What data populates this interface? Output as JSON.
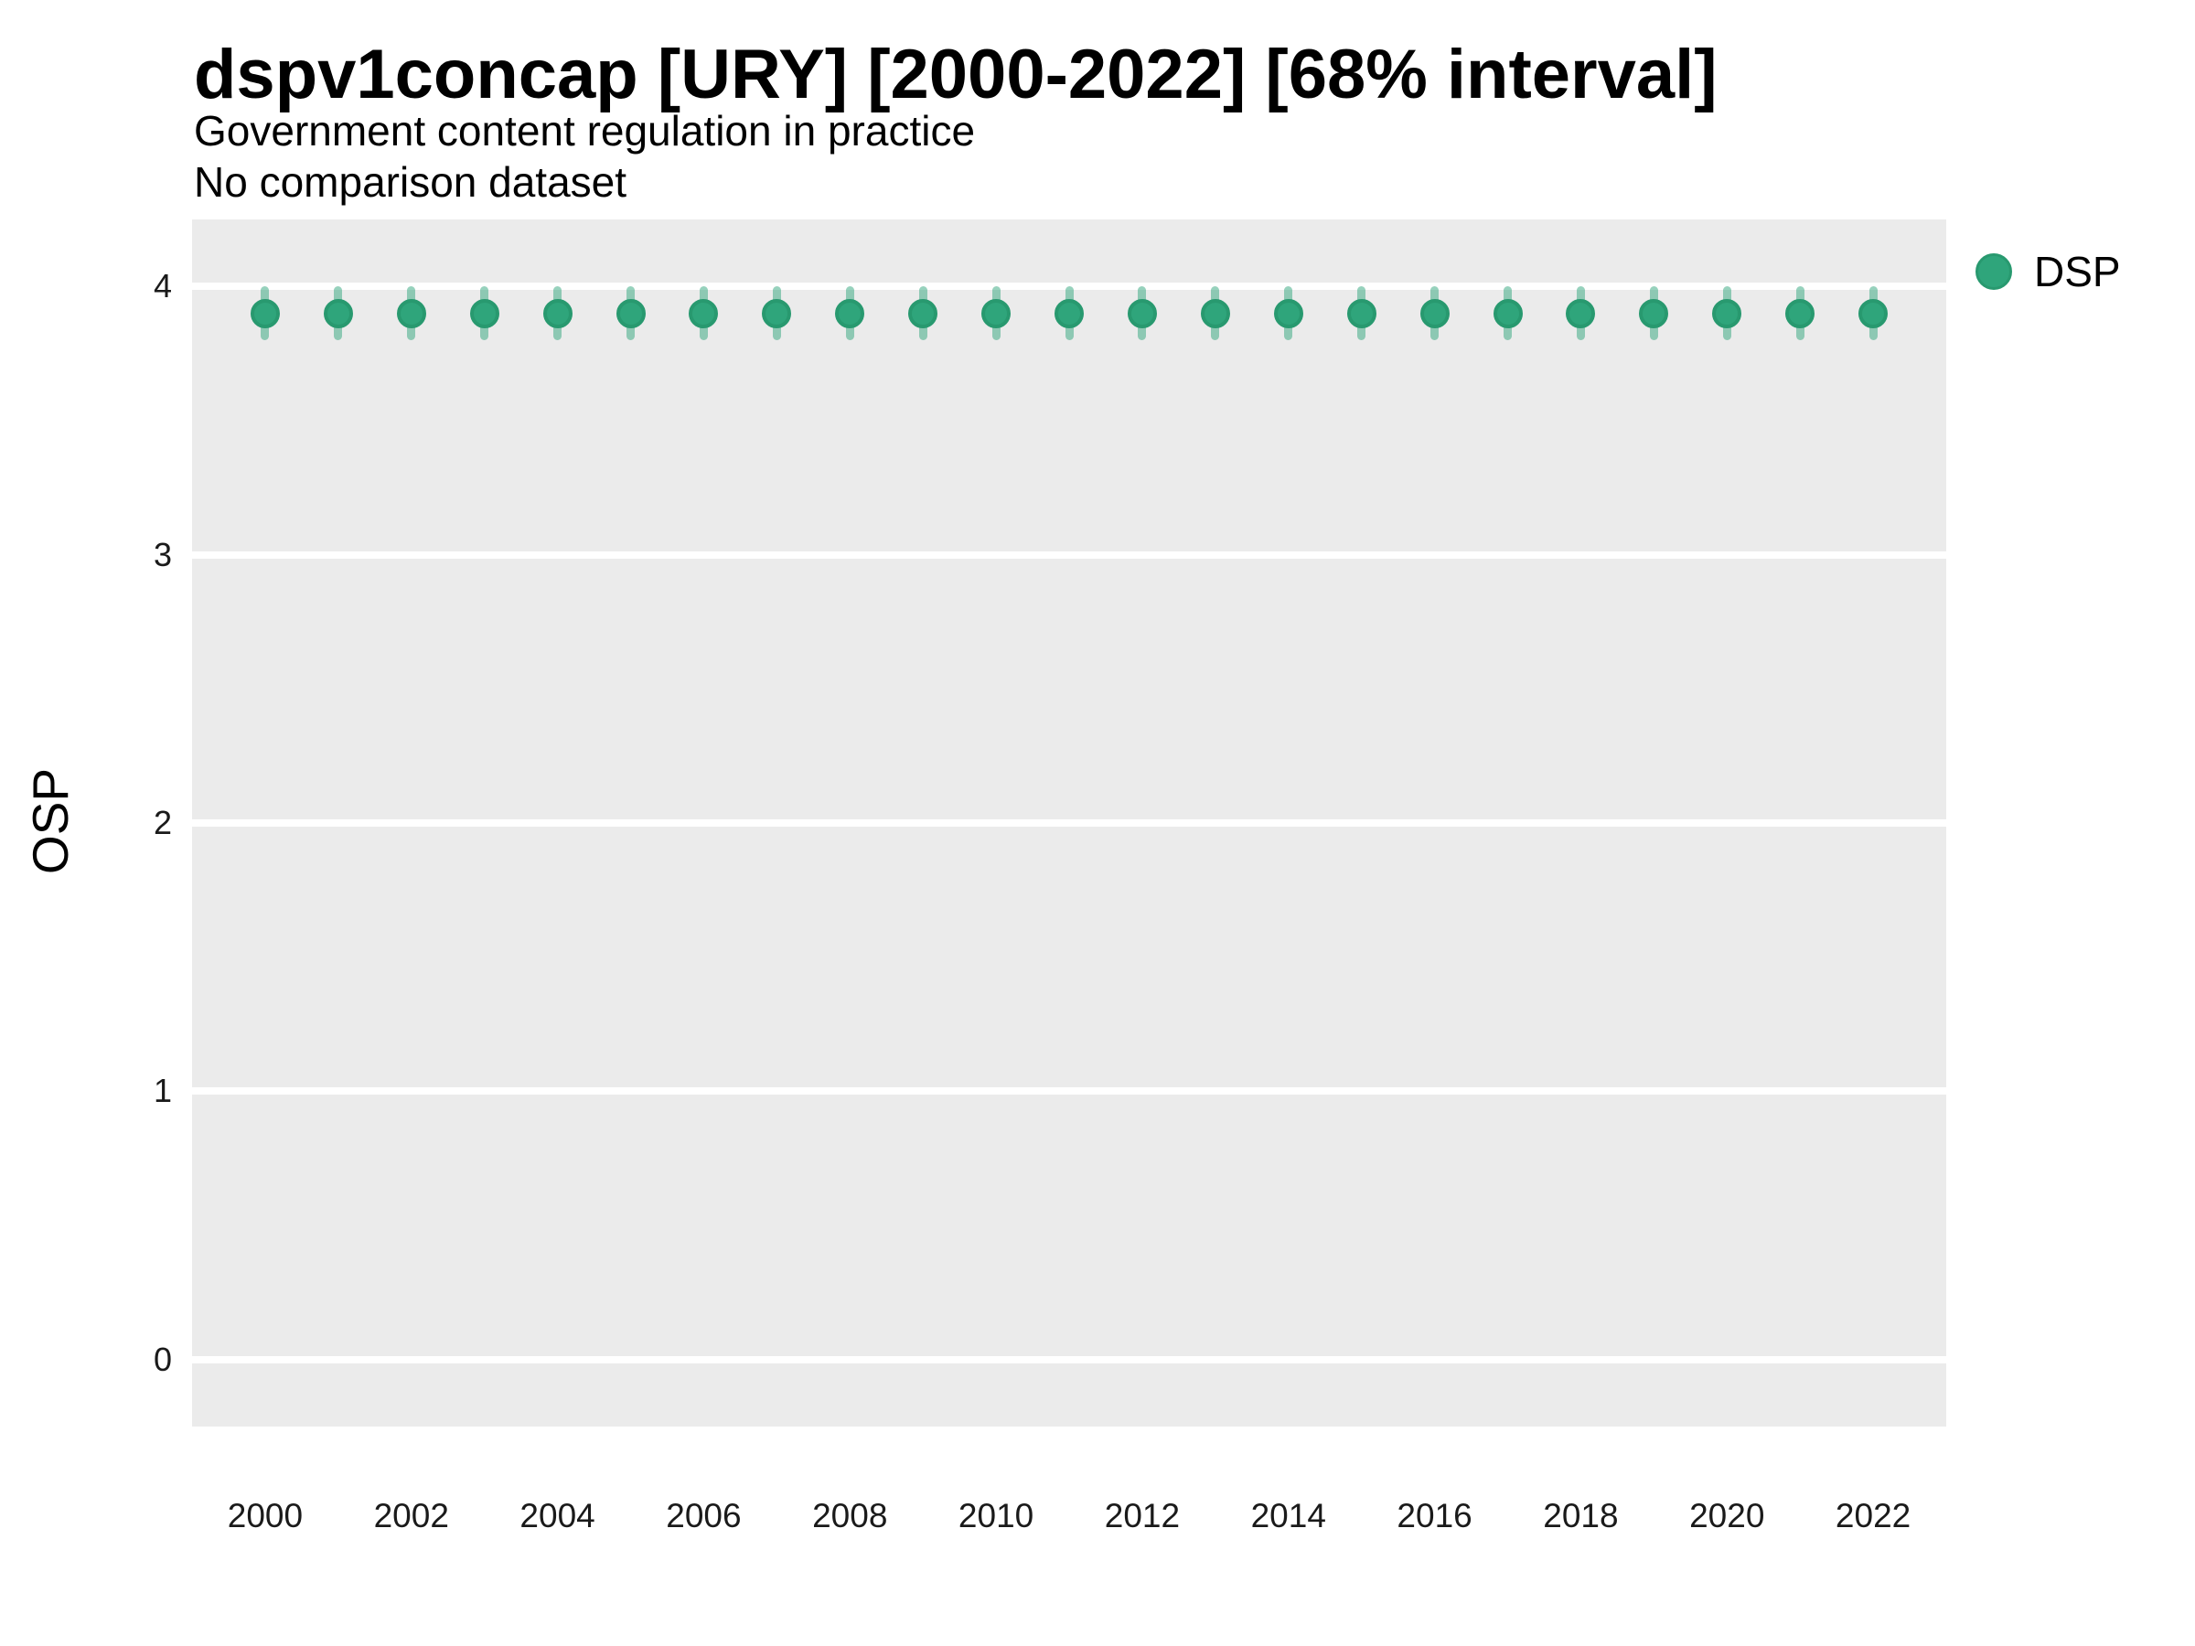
{
  "header": {
    "title": "dspv1concap [URY] [2000-2022] [68% interval]",
    "subtitle": "Government content regulation in practice",
    "note": "No comparison dataset"
  },
  "legend": {
    "label": "DSP"
  },
  "colors": {
    "panel_bg": "#EBEBEB",
    "gridline": "#FFFFFF",
    "point_fill": "#2FA57B",
    "point_stroke": "#28996F",
    "interval_bar": "rgba(47, 165, 123, 0.5)",
    "text": "#000000",
    "tick_text": "#1A1A1A"
  },
  "chart_data": {
    "type": "scatter",
    "title": "dspv1concap [URY] [2000-2022] [68% interval]",
    "subtitle": "Government content regulation in practice",
    "annotation": "No comparison dataset",
    "xlabel": "",
    "ylabel": "OSP",
    "interval_label": "68% interval",
    "country": "URY",
    "x": [
      2000,
      2001,
      2002,
      2003,
      2004,
      2005,
      2006,
      2007,
      2008,
      2009,
      2010,
      2011,
      2012,
      2013,
      2014,
      2015,
      2016,
      2017,
      2018,
      2019,
      2020,
      2021,
      2022
    ],
    "series": [
      {
        "name": "DSP",
        "values": [
          3.9,
          3.9,
          3.9,
          3.9,
          3.9,
          3.9,
          3.9,
          3.9,
          3.9,
          3.9,
          3.9,
          3.9,
          3.9,
          3.9,
          3.9,
          3.9,
          3.9,
          3.9,
          3.9,
          3.9,
          3.9,
          3.9,
          3.9
        ],
        "lower": [
          3.8,
          3.8,
          3.8,
          3.8,
          3.8,
          3.8,
          3.8,
          3.8,
          3.8,
          3.8,
          3.8,
          3.8,
          3.8,
          3.8,
          3.8,
          3.8,
          3.8,
          3.8,
          3.8,
          3.8,
          3.8,
          3.8,
          3.8
        ],
        "upper": [
          4.0,
          4.0,
          4.0,
          4.0,
          4.0,
          4.0,
          4.0,
          4.0,
          4.0,
          4.0,
          4.0,
          4.0,
          4.0,
          4.0,
          4.0,
          4.0,
          4.0,
          4.0,
          4.0,
          4.0,
          4.0,
          4.0,
          4.0
        ]
      }
    ],
    "ylim": [
      -0.25,
      4.25
    ],
    "yticks": [
      0,
      1,
      2,
      3,
      4
    ],
    "xticks": [
      2000,
      2002,
      2004,
      2006,
      2008,
      2010,
      2012,
      2014,
      2016,
      2018,
      2020,
      2022
    ],
    "grid": "horizontal major gridlines only, white on gray panel",
    "legend_position": "right-top"
  }
}
